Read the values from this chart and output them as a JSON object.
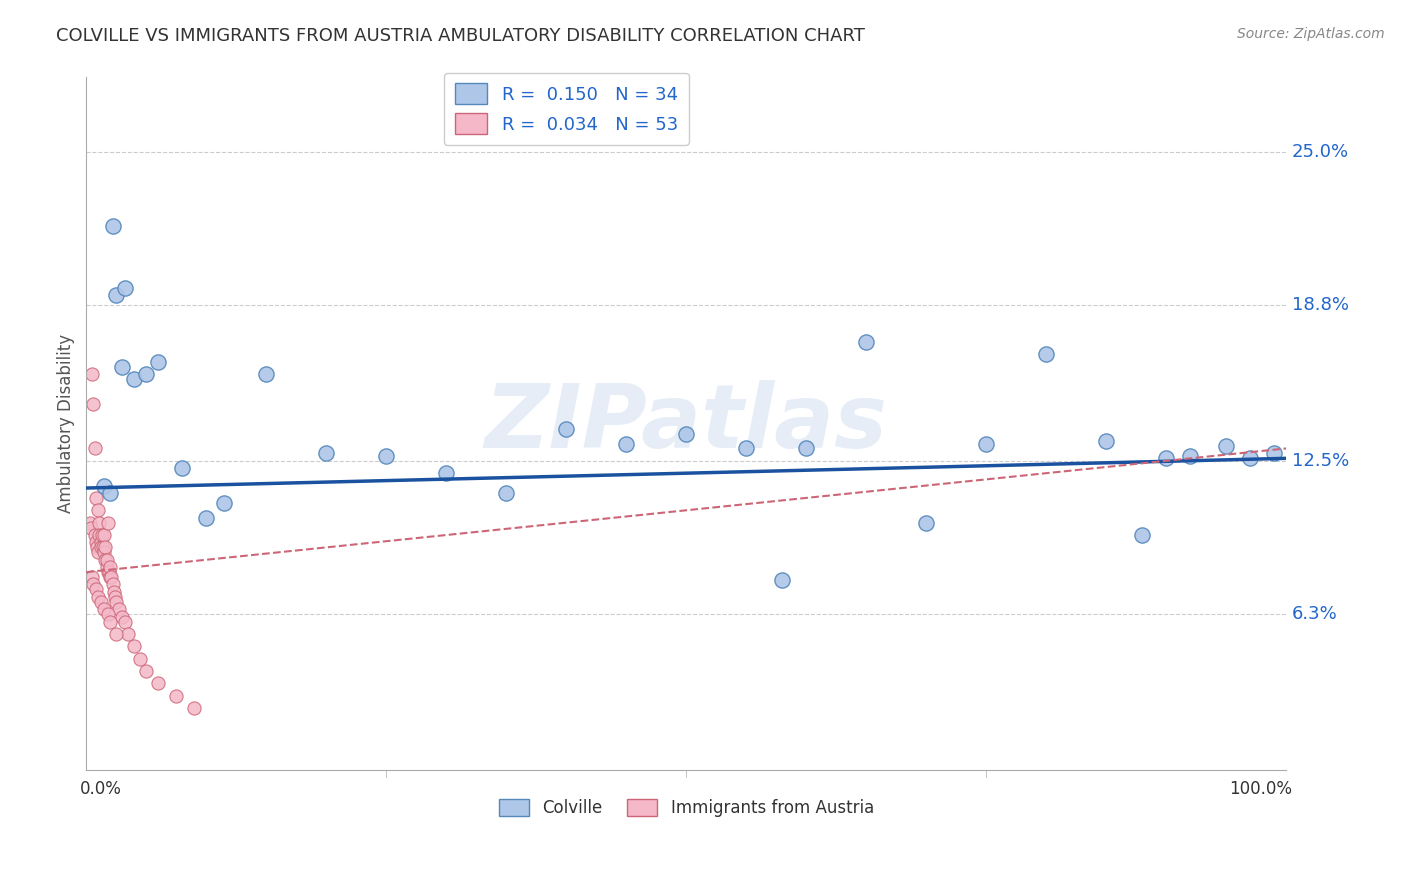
{
  "title": "COLVILLE VS IMMIGRANTS FROM AUSTRIA AMBULATORY DISABILITY CORRELATION CHART",
  "source": "Source: ZipAtlas.com",
  "ylabel": "Ambulatory Disability",
  "colville_color": "#aec6e8",
  "colville_edge": "#5588bb",
  "austria_color": "#f4b8c8",
  "austria_edge": "#cc6677",
  "colville_line_color": "#1a52a0",
  "austria_line_color": "#cc6677",
  "watermark": "ZIPatlas",
  "xlim": [
    0.0,
    1.0
  ],
  "ylim": [
    0.0,
    0.28
  ],
  "ytick_values": [
    0.063,
    0.125,
    0.188,
    0.25
  ],
  "ytick_labels": [
    "6.3%",
    "12.5%",
    "18.8%",
    "25.0%"
  ],
  "background_color": "#ffffff",
  "grid_color": "#cccccc",
  "colville_x": [
    0.015,
    0.02,
    0.022,
    0.025,
    0.03,
    0.032,
    0.04,
    0.05,
    0.06,
    0.08,
    0.1,
    0.115,
    0.15,
    0.2,
    0.25,
    0.3,
    0.35,
    0.4,
    0.45,
    0.5,
    0.55,
    0.58,
    0.6,
    0.65,
    0.7,
    0.75,
    0.8,
    0.85,
    0.88,
    0.9,
    0.92,
    0.95,
    0.97,
    0.99
  ],
  "colville_y": [
    0.115,
    0.112,
    0.22,
    0.192,
    0.163,
    0.195,
    0.158,
    0.16,
    0.165,
    0.122,
    0.102,
    0.108,
    0.16,
    0.128,
    0.127,
    0.12,
    0.112,
    0.138,
    0.132,
    0.136,
    0.13,
    0.077,
    0.13,
    0.173,
    0.1,
    0.132,
    0.168,
    0.133,
    0.095,
    0.126,
    0.127,
    0.131,
    0.126,
    0.128
  ],
  "austria_x": [
    0.003,
    0.004,
    0.005,
    0.006,
    0.007,
    0.007,
    0.008,
    0.008,
    0.009,
    0.01,
    0.01,
    0.011,
    0.011,
    0.012,
    0.012,
    0.013,
    0.014,
    0.015,
    0.015,
    0.016,
    0.016,
    0.017,
    0.017,
    0.018,
    0.018,
    0.019,
    0.02,
    0.02,
    0.021,
    0.022,
    0.023,
    0.024,
    0.025,
    0.027,
    0.03,
    0.032,
    0.035,
    0.04,
    0.045,
    0.05,
    0.06,
    0.075,
    0.09,
    0.005,
    0.006,
    0.008,
    0.01,
    0.012,
    0.015,
    0.018,
    0.02,
    0.025
  ],
  "austria_y": [
    0.1,
    0.098,
    0.16,
    0.148,
    0.13,
    0.095,
    0.092,
    0.11,
    0.09,
    0.088,
    0.105,
    0.1,
    0.095,
    0.092,
    0.09,
    0.095,
    0.09,
    0.088,
    0.095,
    0.085,
    0.09,
    0.082,
    0.085,
    0.08,
    0.1,
    0.08,
    0.078,
    0.082,
    0.078,
    0.075,
    0.072,
    0.07,
    0.068,
    0.065,
    0.062,
    0.06,
    0.055,
    0.05,
    0.045,
    0.04,
    0.035,
    0.03,
    0.025,
    0.078,
    0.075,
    0.073,
    0.07,
    0.068,
    0.065,
    0.063,
    0.06,
    0.055
  ]
}
